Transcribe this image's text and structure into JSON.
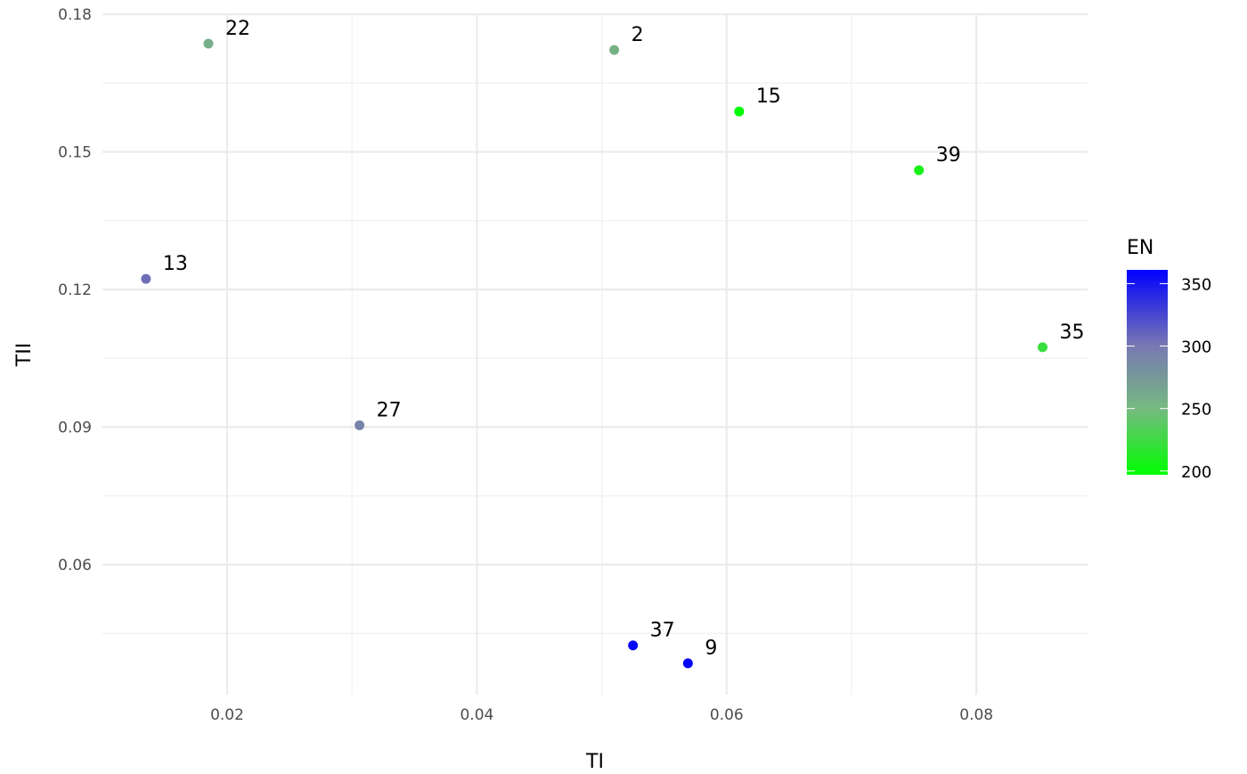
{
  "chart_data": {
    "type": "scatter",
    "title": "",
    "xlabel": "TI",
    "ylabel": "TII",
    "xlim": [
      0.01,
      0.089
    ],
    "ylim": [
      0.0317,
      0.18
    ],
    "xticks": [
      0.02,
      0.04,
      0.06,
      0.08
    ],
    "xtick_labels": [
      "0.02",
      "0.04",
      "0.06",
      "0.08"
    ],
    "yticks": [
      0.06,
      0.09,
      0.12,
      0.15,
      0.18
    ],
    "ytick_labels": [
      "0.06",
      "0.09",
      "0.12",
      "0.15",
      "0.18"
    ],
    "grid": true,
    "color_scale": {
      "title": "EN",
      "range": [
        197,
        361
      ],
      "low_color": "#00ff00",
      "high_color": "#0000ff",
      "ticks": [
        200,
        250,
        300,
        350
      ],
      "tick_labels": [
        "200",
        "250",
        "300",
        "350"
      ],
      "legend_placement": "right"
    },
    "points": [
      {
        "label": "22",
        "x": 0.0185,
        "y": 0.1736,
        "EN": 258
      },
      {
        "label": "2",
        "x": 0.051,
        "y": 0.1722,
        "EN": 256
      },
      {
        "label": "15",
        "x": 0.061,
        "y": 0.1588,
        "EN": 199
      },
      {
        "label": "39",
        "x": 0.0754,
        "y": 0.146,
        "EN": 207
      },
      {
        "label": "13",
        "x": 0.0135,
        "y": 0.1223,
        "EN": 305
      },
      {
        "label": "35",
        "x": 0.0853,
        "y": 0.1074,
        "EN": 222
      },
      {
        "label": "27",
        "x": 0.0306,
        "y": 0.0904,
        "EN": 292
      },
      {
        "label": "37",
        "x": 0.0525,
        "y": 0.0424,
        "EN": 358
      },
      {
        "label": "9",
        "x": 0.0569,
        "y": 0.0385,
        "EN": 360
      }
    ]
  }
}
